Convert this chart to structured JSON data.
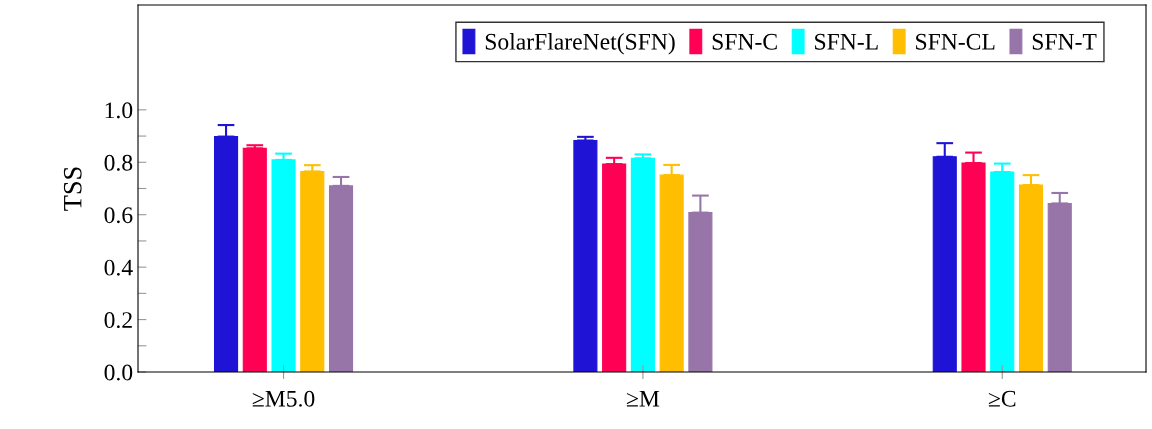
{
  "chart_data": {
    "type": "bar",
    "ylabel": "TSS",
    "categories": [
      "≥M5.0",
      "≥M",
      "≥C"
    ],
    "series": [
      {
        "name": "SolarFlareNet(SFN)",
        "color": "#1f14d6",
        "values": [
          0.898,
          0.883,
          0.821
        ],
        "errors": [
          [
            0.898,
            0.942
          ],
          [
            0.883,
            0.897
          ],
          [
            0.821,
            0.873
          ]
        ]
      },
      {
        "name": "SFN-C",
        "color": "#ff0055",
        "values": [
          0.853,
          0.793,
          0.797
        ],
        "errors": [
          [
            0.853,
            0.865
          ],
          [
            0.793,
            0.817
          ],
          [
            0.797,
            0.837
          ]
        ]
      },
      {
        "name": "SFN-L",
        "color": "#00ffff",
        "values": [
          0.809,
          0.815,
          0.763
        ],
        "errors": [
          [
            0.809,
            0.833
          ],
          [
            0.815,
            0.83
          ],
          [
            0.763,
            0.795
          ]
        ]
      },
      {
        "name": "SFN-CL",
        "color": "#ffbf00",
        "values": [
          0.765,
          0.751,
          0.713
        ],
        "errors": [
          [
            0.765,
            0.789
          ],
          [
            0.751,
            0.79
          ],
          [
            0.713,
            0.751
          ]
        ]
      },
      {
        "name": "SFN-T",
        "color": "#9775a9",
        "values": [
          0.71,
          0.608,
          0.643
        ],
        "errors": [
          [
            0.71,
            0.744
          ],
          [
            0.608,
            0.673
          ],
          [
            0.643,
            0.683
          ]
        ]
      }
    ],
    "ylim": [
      0,
      1.4
    ],
    "yticks": [
      {
        "value": 0,
        "label": "0.0"
      },
      {
        "value": 0.1,
        "label": null
      },
      {
        "value": 0.2,
        "label": "0.2"
      },
      {
        "value": 0.3,
        "label": null
      },
      {
        "value": 0.4,
        "label": "0.4"
      },
      {
        "value": 0.5,
        "label": null
      },
      {
        "value": 0.6,
        "label": "0.6"
      },
      {
        "value": 0.7,
        "label": null
      },
      {
        "value": 0.8,
        "label": "0.8"
      },
      {
        "value": 0.9,
        "label": null
      },
      {
        "value": 1.0,
        "label": "1.0"
      }
    ],
    "grid": false,
    "legend": "top right"
  }
}
